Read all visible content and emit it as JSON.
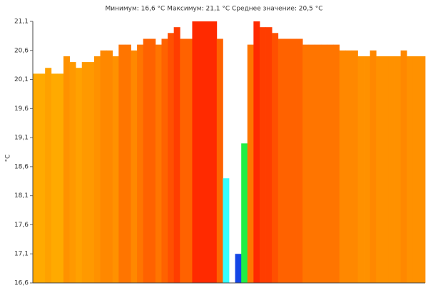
{
  "chart_data": {
    "type": "bar",
    "title": "Минимум: 16,6 °C Максимум: 21,1 °C Среднее значение: 20,5 °C",
    "y_label": "°C",
    "values": [
      20.2,
      20.2,
      20.3,
      20.2,
      20.2,
      20.5,
      20.4,
      20.3,
      20.4,
      20.4,
      20.5,
      20.6,
      20.6,
      20.5,
      20.7,
      20.7,
      20.6,
      20.7,
      20.8,
      20.8,
      20.7,
      20.8,
      20.9,
      21.0,
      20.8,
      20.8,
      21.1,
      21.1,
      21.1,
      21.1,
      20.8,
      18.4,
      16.6,
      17.1,
      19.0,
      20.7,
      21.1,
      21.0,
      21.0,
      20.9,
      20.8,
      20.8,
      20.8,
      20.8,
      20.7,
      20.7,
      20.7,
      20.7,
      20.7,
      20.7,
      20.6,
      20.6,
      20.6,
      20.5,
      20.5,
      20.6,
      20.5,
      20.5,
      20.5,
      20.5,
      20.6,
      20.5,
      20.5,
      20.5
    ],
    "color_scale": [
      [
        16.6,
        "#0a2cd8"
      ],
      [
        17.1,
        "#1446e6"
      ],
      [
        18.4,
        "#33ffff"
      ],
      [
        19.0,
        "#22ee44"
      ],
      [
        20.2,
        "#ffaa00"
      ],
      [
        20.6,
        "#ff8800"
      ],
      [
        21.1,
        "#ff2a00"
      ]
    ],
    "ylim": [
      16.6,
      21.1
    ],
    "yticks": [
      {
        "value": 16.6,
        "label": "16,6"
      },
      {
        "value": 17.1,
        "label": "17,1"
      },
      {
        "value": 17.6,
        "label": "17,6"
      },
      {
        "value": 18.1,
        "label": "18,1"
      },
      {
        "value": 18.6,
        "label": "18,6"
      },
      {
        "value": 19.1,
        "label": "19,1"
      },
      {
        "value": 19.6,
        "label": "19,6"
      },
      {
        "value": 20.1,
        "label": "20,1"
      },
      {
        "value": 20.6,
        "label": "20,6"
      },
      {
        "value": 21.1,
        "label": "21,1"
      }
    ]
  }
}
